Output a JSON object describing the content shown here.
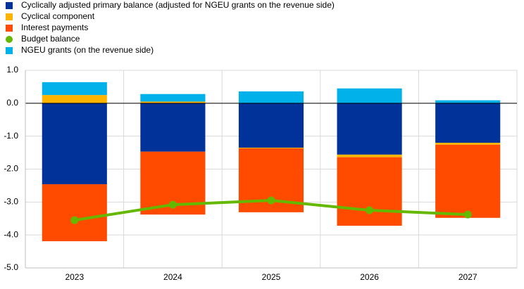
{
  "chart_data": {
    "type": "stacked-bar-line",
    "categories": [
      "2023",
      "2024",
      "2025",
      "2026",
      "2027"
    ],
    "series": [
      {
        "name": "Cyclically adjusted primary balance (adjusted for NGEU grants on the revenue side)",
        "color": "#003299",
        "kind": "bar",
        "values": [
          -2.46,
          -1.47,
          -1.35,
          -1.56,
          -1.2
        ]
      },
      {
        "name": "Cyclical component",
        "color": "#ffb400",
        "kind": "bar",
        "values": [
          0.25,
          0.05,
          -0.02,
          -0.08,
          -0.06
        ]
      },
      {
        "name": "Interest payments",
        "color": "#ff4b00",
        "kind": "bar",
        "values": [
          -1.73,
          -1.91,
          -1.94,
          -2.08,
          -2.22
        ]
      },
      {
        "name": "Budget balance",
        "color": "#65b800",
        "kind": "line",
        "values": [
          -3.55,
          -3.08,
          -2.95,
          -3.25,
          -3.38
        ]
      },
      {
        "name": "NGEU grants (on the revenue side)",
        "color": "#00b1ea",
        "kind": "bar",
        "values": [
          0.39,
          0.23,
          0.36,
          0.45,
          0.09
        ]
      }
    ],
    "ylim": [
      -5,
      1
    ],
    "yticks": [
      {
        "value": 1,
        "label": "1.0"
      },
      {
        "value": 0,
        "label": "0.0"
      },
      {
        "value": -1,
        "label": "-1.0"
      },
      {
        "value": -2,
        "label": "-2.0"
      },
      {
        "value": -3,
        "label": "-3.0"
      },
      {
        "value": -4,
        "label": "-4.0"
      },
      {
        "value": -5,
        "label": "-5.0"
      }
    ],
    "grid": true
  }
}
